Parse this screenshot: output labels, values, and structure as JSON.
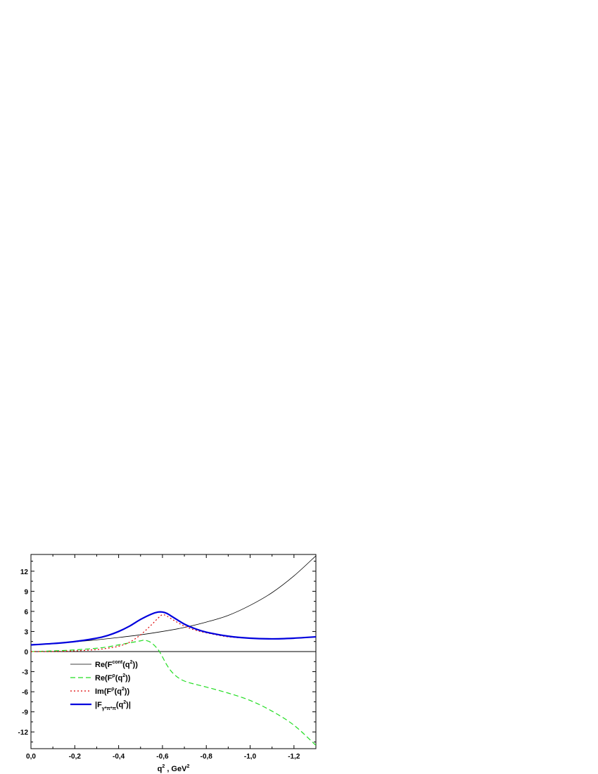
{
  "chart_data": {
    "type": "line",
    "x_axis": {
      "ticks": [
        0.0,
        -0.2,
        -0.4,
        -0.6,
        -0.8,
        -1.0,
        -1.2
      ],
      "tick_labels": [
        "0,0",
        "-0,2",
        "-0,4",
        "-0,6",
        "-0,8",
        "-1,0",
        "-1,2"
      ],
      "range": [
        0.0,
        -1.3
      ],
      "label_main": "q",
      "label_sup": "2",
      "label_rest": " , GeV",
      "label_unit_sup": "2",
      "reversed": true
    },
    "y_axis": {
      "ticks": [
        12,
        9,
        6,
        3,
        0,
        -3,
        -6,
        -9,
        -12
      ],
      "tick_labels": [
        "12",
        "9",
        "6",
        "3",
        "0",
        "-3",
        "-6",
        "-9",
        "-12"
      ],
      "range": [
        -14.5,
        14.5
      ]
    },
    "zero_line": true,
    "legend_position": "lower-left",
    "series": [
      {
        "key": "re_cont",
        "legend": {
          "pre": "Re(F",
          "sup": "cont",
          "mid": "(q",
          "sup2": "2",
          "post": "))"
        },
        "color": "#000000",
        "style": "solid",
        "width": 0.8,
        "x": [
          0.0,
          -0.1,
          -0.2,
          -0.3,
          -0.4,
          -0.5,
          -0.6,
          -0.7,
          -0.8,
          -0.9,
          -1.0,
          -1.1,
          -1.2,
          -1.3
        ],
        "y": [
          1.0,
          1.2,
          1.45,
          1.75,
          2.1,
          2.5,
          3.0,
          3.6,
          4.4,
          5.4,
          6.9,
          8.8,
          11.3,
          14.3
        ]
      },
      {
        "key": "re_rho",
        "legend": {
          "pre": "Re(F",
          "sup": "ρ",
          "mid": "(q",
          "sup2": "2",
          "post": "))"
        },
        "color": "#22dd22",
        "style": "dashed",
        "width": 1.2,
        "x": [
          0.0,
          -0.1,
          -0.2,
          -0.3,
          -0.35,
          -0.4,
          -0.45,
          -0.5,
          -0.52,
          -0.55,
          -0.58,
          -0.6,
          -0.62,
          -0.65,
          -0.7,
          -0.8,
          -0.9,
          -1.0,
          -1.1,
          -1.2,
          -1.3
        ],
        "y": [
          0.0,
          0.1,
          0.25,
          0.5,
          0.7,
          1.0,
          1.3,
          1.6,
          1.7,
          1.3,
          0.3,
          -0.8,
          -2.0,
          -3.3,
          -4.4,
          -5.3,
          -6.2,
          -7.3,
          -8.9,
          -11.0,
          -14.0
        ]
      },
      {
        "key": "im_rho",
        "legend": {
          "pre": "Im(F",
          "sup": "ρ",
          "mid": "(q",
          "sup2": "2",
          "post": "))"
        },
        "color": "#dd0000",
        "style": "dotted",
        "width": 1.2,
        "x": [
          0.0,
          -0.1,
          -0.2,
          -0.3,
          -0.35,
          -0.4,
          -0.45,
          -0.5,
          -0.55,
          -0.58,
          -0.6,
          -0.62,
          -0.65,
          -0.7,
          -0.75,
          -0.8,
          -0.9,
          -1.0,
          -1.1,
          -1.2,
          -1.3
        ],
        "y": [
          0.0,
          0.02,
          0.1,
          0.3,
          0.5,
          0.8,
          1.4,
          2.5,
          4.0,
          5.0,
          5.5,
          5.3,
          4.7,
          3.8,
          3.2,
          2.8,
          2.2,
          2.0,
          1.9,
          2.0,
          2.2
        ]
      },
      {
        "key": "abs_f",
        "legend": {
          "pre": "|F",
          "sub": "γ*π*π",
          "mid": "(q",
          "sup2": "2",
          "post": ")|"
        },
        "color": "#0000dd",
        "style": "solid",
        "width": 2.2,
        "x": [
          0.0,
          -0.1,
          -0.2,
          -0.3,
          -0.35,
          -0.4,
          -0.45,
          -0.5,
          -0.55,
          -0.58,
          -0.6,
          -0.62,
          -0.65,
          -0.7,
          -0.75,
          -0.8,
          -0.9,
          -1.0,
          -1.1,
          -1.2,
          -1.3
        ],
        "y": [
          1.0,
          1.2,
          1.5,
          2.0,
          2.4,
          3.0,
          3.8,
          4.8,
          5.6,
          5.9,
          5.9,
          5.7,
          5.1,
          4.1,
          3.4,
          2.9,
          2.3,
          2.0,
          1.9,
          2.0,
          2.2
        ]
      }
    ]
  }
}
